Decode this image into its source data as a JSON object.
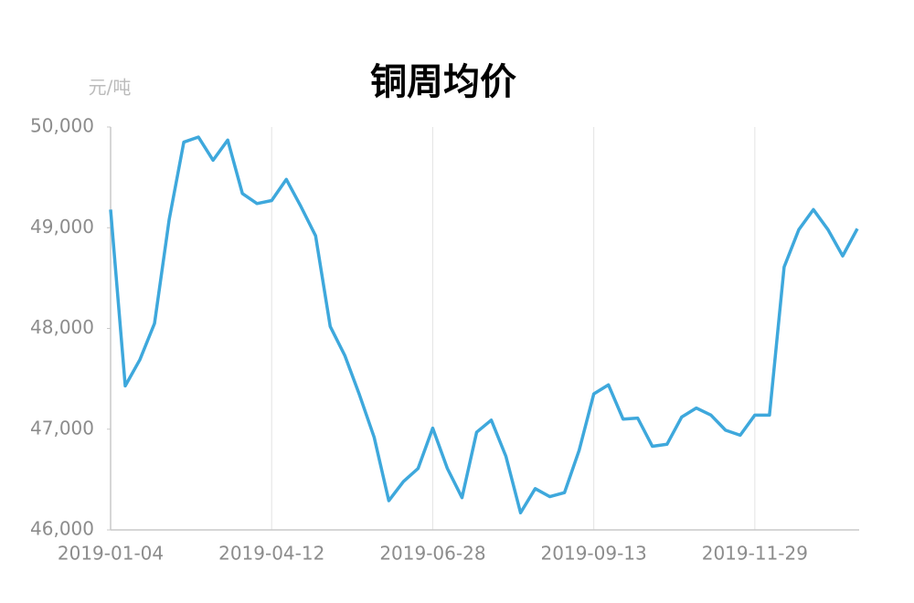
{
  "chart_data": {
    "type": "line",
    "title": "铜周均价",
    "y_label": "元/吨",
    "categories": [
      "2019-01-04",
      null,
      null,
      null,
      null,
      null,
      null,
      null,
      null,
      null,
      null,
      "2019-04-12",
      null,
      null,
      null,
      null,
      null,
      null,
      null,
      null,
      null,
      null,
      "2019-06-28",
      null,
      null,
      null,
      null,
      null,
      null,
      null,
      null,
      null,
      null,
      "2019-09-13",
      null,
      null,
      null,
      null,
      null,
      null,
      null,
      null,
      null,
      null,
      "2019-11-29",
      null,
      null,
      null,
      null,
      null,
      null,
      null
    ],
    "series": [
      {
        "color": "#3ea8dc",
        "values": [
          49180,
          47430,
          47690,
          48050,
          49080,
          49850,
          49900,
          49670,
          49870,
          49340,
          49240,
          49270,
          49480,
          49210,
          48920,
          48020,
          47730,
          47340,
          46920,
          46290,
          46480,
          46610,
          47010,
          46610,
          46320,
          46970,
          47090,
          46730,
          46170,
          46410,
          46330,
          46370,
          46790,
          47350,
          47440,
          47100,
          47110,
          46830,
          46850,
          47120,
          47210,
          47140,
          46990,
          46940,
          47140,
          47140,
          48610,
          48980,
          49180,
          48980,
          48720,
          48990
        ]
      }
    ],
    "ylim": [
      46000,
      50000
    ],
    "yticks": [
      {
        "value": 46000,
        "label": "46,000"
      },
      {
        "value": 47000,
        "label": "47,000"
      },
      {
        "value": 48000,
        "label": "48,000"
      },
      {
        "value": 49000,
        "label": "49,000"
      },
      {
        "value": 50000,
        "label": "50,000"
      }
    ],
    "grid": true
  }
}
